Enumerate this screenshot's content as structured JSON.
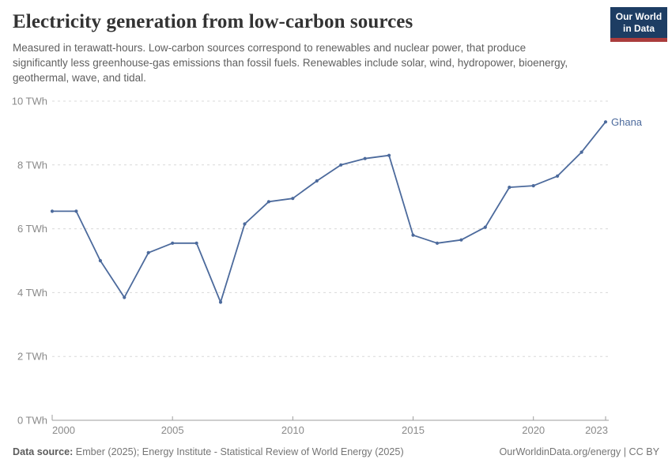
{
  "header": {
    "title": "Electricity generation from low-carbon sources",
    "subtitle": "Measured in terawatt-hours. Low-carbon sources correspond to renewables and nuclear power, that produce significantly less greenhouse-gas emissions than fossil fuels. Renewables include solar, wind, hydropower, bioenergy, geothermal, wave, and tidal.",
    "logo": {
      "line1": "Our World",
      "line2": "in Data"
    }
  },
  "chart_data": {
    "type": "line",
    "title": "Electricity generation from low-carbon sources",
    "unit": "TWh",
    "xlim": [
      2000,
      2023
    ],
    "ylim": [
      0,
      10
    ],
    "grid": "horizontal-dashed",
    "legend_position": "end-of-line",
    "x": [
      2000,
      2001,
      2002,
      2003,
      2004,
      2005,
      2006,
      2007,
      2008,
      2009,
      2010,
      2011,
      2012,
      2013,
      2014,
      2015,
      2016,
      2017,
      2018,
      2019,
      2020,
      2021,
      2022,
      2023
    ],
    "series": [
      {
        "name": "Ghana",
        "color": "#4C6A9C",
        "values": [
          6.55,
          6.55,
          5.0,
          3.85,
          5.25,
          5.55,
          5.55,
          3.7,
          6.15,
          6.85,
          6.95,
          7.5,
          8.0,
          8.2,
          8.3,
          5.8,
          5.55,
          5.65,
          6.05,
          7.3,
          7.35,
          7.65,
          8.4,
          9.35
        ]
      }
    ],
    "x_ticks": [
      2000,
      2005,
      2010,
      2015,
      2020,
      2023
    ],
    "x_tick_labels": [
      "2000",
      "2005",
      "2010",
      "2015",
      "2020",
      "2023"
    ],
    "y_ticks": [
      0,
      2,
      4,
      6,
      8,
      10
    ],
    "y_tick_labels": [
      "0 TWh",
      "2 TWh",
      "4 TWh",
      "6 TWh",
      "8 TWh",
      "10 TWh"
    ]
  },
  "footer": {
    "datasource_label": "Data source:",
    "datasource_text": " Ember (2025); Energy Institute - Statistical Review of World Energy (2025)",
    "credit": "OurWorldinData.org/energy | CC BY"
  },
  "colors": {
    "line": "#4C6A9C",
    "grid": "#d9d9d9",
    "axis": "#9e9e9e",
    "tick_label": "#8a8a8a",
    "logo_bg": "#1d3d63",
    "logo_red": "#aa3c3c"
  }
}
